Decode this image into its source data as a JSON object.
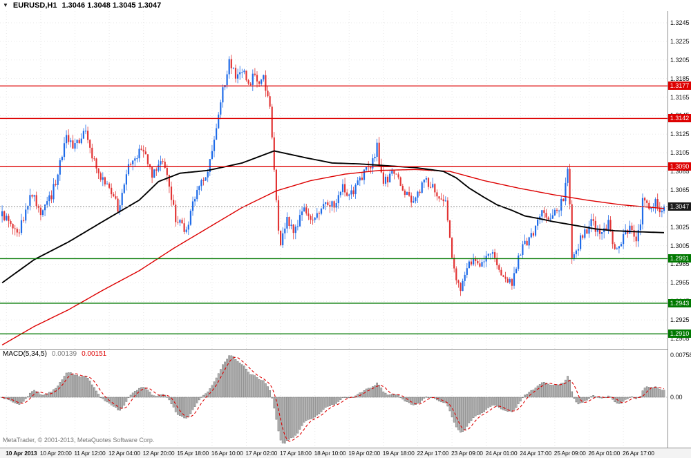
{
  "window": {
    "menu_icon": "▼",
    "symbol_period": "EURUSD,H1",
    "ohlc": "1.3046 1.3048 1.3045 1.3047"
  },
  "colors": {
    "bull": "#1f6be8",
    "bear": "#e23434",
    "ma_black": "#000000",
    "ma_red": "#dd0000",
    "resistance": "#dd0000",
    "support": "#007800",
    "current_line": "#8a8a8a",
    "hist_fill": "#b5b5b5",
    "hist_stroke": "#6e6e6e",
    "signal": "#dd0000",
    "grid": "#e7e7e7"
  },
  "credit": "MetaTrader, © 2001-2013, MetaQuotes Software Corp.",
  "chart_data": {
    "type": "candlestick",
    "symbol": "EURUSD",
    "timeframe": "H1",
    "bars": 310,
    "price_range": [
      1.2898,
      1.3258
    ],
    "y_ticks": [
      "1.3245",
      "1.3225",
      "1.3205",
      "1.3185",
      "1.3165",
      "1.3145",
      "1.3125",
      "1.3105",
      "1.3085",
      "1.3065",
      "1.3045",
      "1.3025",
      "1.3005",
      "1.2985",
      "1.2965",
      "1.2945",
      "1.2925",
      "1.2905"
    ],
    "x_ticks": [
      {
        "text": "10 Apr 2013",
        "bar": 2
      },
      {
        "text": "10 Apr 20:00",
        "bar": 18
      },
      {
        "text": "11 Apr 12:00",
        "bar": 34
      },
      {
        "text": "12 Apr 04:00",
        "bar": 50
      },
      {
        "text": "12 Apr 20:00",
        "bar": 66
      },
      {
        "text": "15 Apr 18:00",
        "bar": 82
      },
      {
        "text": "16 Apr 10:00",
        "bar": 98
      },
      {
        "text": "17 Apr 02:00",
        "bar": 114
      },
      {
        "text": "17 Apr 18:00",
        "bar": 130
      },
      {
        "text": "18 Apr 10:00",
        "bar": 146
      },
      {
        "text": "19 Apr 02:00",
        "bar": 162
      },
      {
        "text": "19 Apr 18:00",
        "bar": 178
      },
      {
        "text": "22 Apr 17:00",
        "bar": 194
      },
      {
        "text": "23 Apr 09:00",
        "bar": 210
      },
      {
        "text": "24 Apr 01:00",
        "bar": 226
      },
      {
        "text": "24 Apr 17:00",
        "bar": 242
      },
      {
        "text": "25 Apr 09:00",
        "bar": 258
      },
      {
        "text": "26 Apr 01:00",
        "bar": 274
      },
      {
        "text": "26 Apr 17:00",
        "bar": 290
      }
    ],
    "levels": [
      {
        "value": 1.3177,
        "label": "1.3177",
        "type": "resistance"
      },
      {
        "value": 1.3142,
        "label": "1.3142",
        "type": "resistance"
      },
      {
        "value": 1.309,
        "label": "1.3090",
        "type": "resistance"
      },
      {
        "value": 1.3047,
        "label": "1.3047",
        "type": "current"
      },
      {
        "value": 1.2991,
        "label": "1.2991",
        "type": "support"
      },
      {
        "value": 1.2943,
        "label": "1.2943",
        "type": "support"
      },
      {
        "value": 1.291,
        "label": "1.2910",
        "type": "support"
      }
    ],
    "price_path_anchors": [
      [
        0,
        1.304
      ],
      [
        4,
        1.3028
      ],
      [
        7,
        1.3015
      ],
      [
        11,
        1.3042
      ],
      [
        14,
        1.3062
      ],
      [
        18,
        1.304
      ],
      [
        23,
        1.3058
      ],
      [
        27,
        1.3092
      ],
      [
        30,
        1.3125
      ],
      [
        33,
        1.3108
      ],
      [
        36,
        1.3118
      ],
      [
        39,
        1.313
      ],
      [
        42,
        1.31
      ],
      [
        45,
        1.3082
      ],
      [
        49,
        1.307
      ],
      [
        54,
        1.3046
      ],
      [
        57,
        1.3068
      ],
      [
        59,
        1.3092
      ],
      [
        62,
        1.31
      ],
      [
        65,
        1.311
      ],
      [
        68,
        1.3094
      ],
      [
        70,
        1.3078
      ],
      [
        73,
        1.3092
      ],
      [
        75,
        1.3098
      ],
      [
        78,
        1.3068
      ],
      [
        81,
        1.3032
      ],
      [
        84,
        1.3026
      ],
      [
        86,
        1.302
      ],
      [
        89,
        1.3048
      ],
      [
        91,
        1.3066
      ],
      [
        94,
        1.3075
      ],
      [
        96,
        1.3082
      ],
      [
        99,
        1.3118
      ],
      [
        102,
        1.316
      ],
      [
        104,
        1.3182
      ],
      [
        106,
        1.3205
      ],
      [
        109,
        1.3186
      ],
      [
        112,
        1.3196
      ],
      [
        115,
        1.3178
      ],
      [
        118,
        1.319
      ],
      [
        120,
        1.3183
      ],
      [
        122,
        1.3186
      ],
      [
        124,
        1.3165
      ],
      [
        125,
        1.315
      ],
      [
        127,
        1.3085
      ],
      [
        129,
        1.302
      ],
      [
        130,
        1.3008
      ],
      [
        133,
        1.3032
      ],
      [
        136,
        1.3022
      ],
      [
        139,
        1.3035
      ],
      [
        141,
        1.3046
      ],
      [
        144,
        1.303
      ],
      [
        146,
        1.3036
      ],
      [
        149,
        1.3048
      ],
      [
        151,
        1.3056
      ],
      [
        154,
        1.3048
      ],
      [
        156,
        1.3052
      ],
      [
        159,
        1.307
      ],
      [
        162,
        1.306
      ],
      [
        165,
        1.3068
      ],
      [
        167,
        1.3078
      ],
      [
        170,
        1.3086
      ],
      [
        172,
        1.309
      ],
      [
        175,
        1.3112
      ],
      [
        176,
        1.3092
      ],
      [
        178,
        1.3072
      ],
      [
        181,
        1.308
      ],
      [
        183,
        1.3086
      ],
      [
        186,
        1.3072
      ],
      [
        188,
        1.3062
      ],
      [
        191,
        1.3056
      ],
      [
        193,
        1.3056
      ],
      [
        195,
        1.3066
      ],
      [
        197,
        1.3076
      ],
      [
        200,
        1.3068
      ],
      [
        202,
        1.3066
      ],
      [
        205,
        1.3056
      ],
      [
        207,
        1.305
      ],
      [
        209,
        1.3012
      ],
      [
        210,
        1.2992
      ],
      [
        212,
        1.2972
      ],
      [
        214,
        1.296
      ],
      [
        216,
        1.2976
      ],
      [
        218,
        1.299
      ],
      [
        221,
        1.2984
      ],
      [
        223,
        1.298
      ],
      [
        226,
        1.2994
      ],
      [
        228,
        1.3
      ],
      [
        231,
        1.2986
      ],
      [
        233,
        1.2976
      ],
      [
        236,
        1.297
      ],
      [
        238,
        1.2966
      ],
      [
        240,
        1.2982
      ],
      [
        242,
        1.3
      ],
      [
        245,
        1.3008
      ],
      [
        247,
        1.3016
      ],
      [
        250,
        1.303
      ],
      [
        252,
        1.304
      ],
      [
        255,
        1.3038
      ],
      [
        257,
        1.3036
      ],
      [
        260,
        1.3046
      ],
      [
        262,
        1.3056
      ],
      [
        264,
        1.3088
      ],
      [
        265,
        1.3048
      ],
      [
        266,
        1.299
      ],
      [
        268,
        1.3
      ],
      [
        270,
        1.3012
      ],
      [
        273,
        1.3022
      ],
      [
        275,
        1.303
      ],
      [
        278,
        1.3022
      ],
      [
        280,
        1.3016
      ],
      [
        283,
        1.3028
      ],
      [
        285,
        1.3008
      ],
      [
        287,
        1.2998
      ],
      [
        289,
        1.3008
      ],
      [
        291,
        1.3018
      ],
      [
        294,
        1.3026
      ],
      [
        296,
        1.3008
      ],
      [
        298,
        1.303
      ],
      [
        299,
        1.3058
      ],
      [
        301,
        1.3048
      ],
      [
        303,
        1.3042
      ],
      [
        305,
        1.3052
      ],
      [
        307,
        1.3044
      ],
      [
        309,
        1.3047
      ]
    ],
    "ma_black_anchors": [
      [
        0,
        1.2965
      ],
      [
        15,
        1.299
      ],
      [
        31,
        1.3009
      ],
      [
        47,
        1.3031
      ],
      [
        64,
        1.3054
      ],
      [
        73,
        1.3074
      ],
      [
        83,
        1.3083
      ],
      [
        96,
        1.3086
      ],
      [
        112,
        1.3094
      ],
      [
        127,
        1.3107
      ],
      [
        141,
        1.31
      ],
      [
        154,
        1.3094
      ],
      [
        167,
        1.3093
      ],
      [
        180,
        1.3091
      ],
      [
        193,
        1.3089
      ],
      [
        206,
        1.3085
      ],
      [
        212,
        1.3078
      ],
      [
        218,
        1.3067
      ],
      [
        225,
        1.3057
      ],
      [
        231,
        1.3049
      ],
      [
        238,
        1.3043
      ],
      [
        244,
        1.3037
      ],
      [
        251,
        1.3034
      ],
      [
        257,
        1.3031
      ],
      [
        267,
        1.3027
      ],
      [
        277,
        1.3023
      ],
      [
        286,
        1.3021
      ],
      [
        296,
        1.302
      ],
      [
        309,
        1.3019
      ]
    ],
    "ma_red_anchors": [
      [
        0,
        1.2898
      ],
      [
        15,
        1.2918
      ],
      [
        31,
        1.2936
      ],
      [
        47,
        1.2957
      ],
      [
        64,
        1.2978
      ],
      [
        80,
        1.3002
      ],
      [
        96,
        1.3024
      ],
      [
        112,
        1.3046
      ],
      [
        128,
        1.3064
      ],
      [
        144,
        1.3075
      ],
      [
        160,
        1.3082
      ],
      [
        176,
        1.3086
      ],
      [
        193,
        1.3087
      ],
      [
        209,
        1.3085
      ],
      [
        225,
        1.3075
      ],
      [
        241,
        1.3067
      ],
      [
        257,
        1.306
      ],
      [
        273,
        1.3054
      ],
      [
        289,
        1.3049
      ],
      [
        309,
        1.3045
      ]
    ],
    "indicator": {
      "name": "MACD",
      "label": "MACD(5,34,5)",
      "value": "0.00139",
      "signal_value": "0.00151",
      "y_ticks": [
        {
          "text": "0.00758",
          "value": 0.00758
        },
        {
          "text": "0.00",
          "value": 0
        }
      ]
    }
  }
}
